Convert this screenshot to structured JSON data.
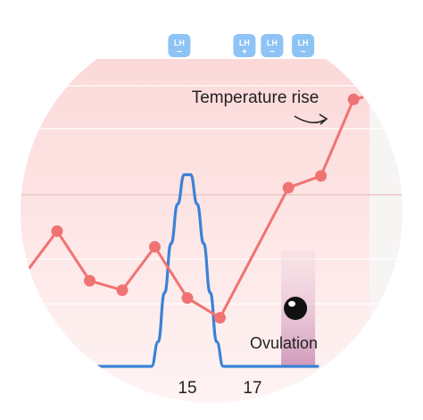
{
  "chart_data": {
    "type": "line",
    "title": "",
    "xlabel": "",
    "ylabel": "",
    "x_tick_labels": [
      {
        "day": 15,
        "label": "15"
      },
      {
        "day": 17,
        "label": "17"
      }
    ],
    "series": [
      {
        "name": "",
        "kind": "temperature",
        "color": "#f07373",
        "points": [
          {
            "day": 10,
            "value": 0.6
          },
          {
            "day": 11,
            "value": 1.15
          },
          {
            "day": 12,
            "value": 0.52
          },
          {
            "day": 13,
            "value": 0.4
          },
          {
            "day": 14,
            "value": 0.95
          },
          {
            "day": 15,
            "value": 0.3
          },
          {
            "day": 16,
            "value": 0.05
          },
          {
            "day": 18.1,
            "value": 1.7
          },
          {
            "day": 19.1,
            "value": 1.85
          },
          {
            "day": 20.1,
            "value": 2.82
          },
          {
            "day": 20.4,
            "value": 2.85
          }
        ],
        "marked_days": [
          11,
          12,
          13,
          14,
          15,
          16,
          18.1,
          19.1,
          20.1
        ]
      },
      {
        "name": "",
        "kind": "lh",
        "color": "#3a82d6",
        "curve": [
          {
            "day": 12.0,
            "value": 0
          },
          {
            "day": 13.9,
            "value": 0
          },
          {
            "day": 14.1,
            "value": 0.5
          },
          {
            "day": 14.3,
            "value": 1.5
          },
          {
            "day": 14.5,
            "value": 2.5
          },
          {
            "day": 14.7,
            "value": 3.3
          },
          {
            "day": 14.9,
            "value": 3.9
          },
          {
            "day": 15.1,
            "value": 3.9
          },
          {
            "day": 15.3,
            "value": 3.3
          },
          {
            "day": 15.5,
            "value": 2.5
          },
          {
            "day": 15.7,
            "value": 1.5
          },
          {
            "day": 15.9,
            "value": 0.5
          },
          {
            "day": 16.1,
            "value": 0
          },
          {
            "day": 19.0,
            "value": 0
          }
        ]
      }
    ],
    "lh_tests": [
      {
        "day": 14.75,
        "label": "LH",
        "sign": "−"
      },
      {
        "day": 16.75,
        "label": "LH",
        "sign": "+"
      },
      {
        "day": 17.6,
        "label": "LH",
        "sign": "−"
      },
      {
        "day": 18.55,
        "label": "LH",
        "sign": "−"
      }
    ],
    "annotations": {
      "temperature_rise": "Temperature rise",
      "ovulation": "Ovulation",
      "ovulation_day": 18.4
    },
    "colors": {
      "temperature": "#f07373",
      "lh": "#3a82d6",
      "lh_badge": "#8ec3f5",
      "background_pink": "#fde3e3",
      "ovulation_band": "#d8a3c4"
    }
  }
}
